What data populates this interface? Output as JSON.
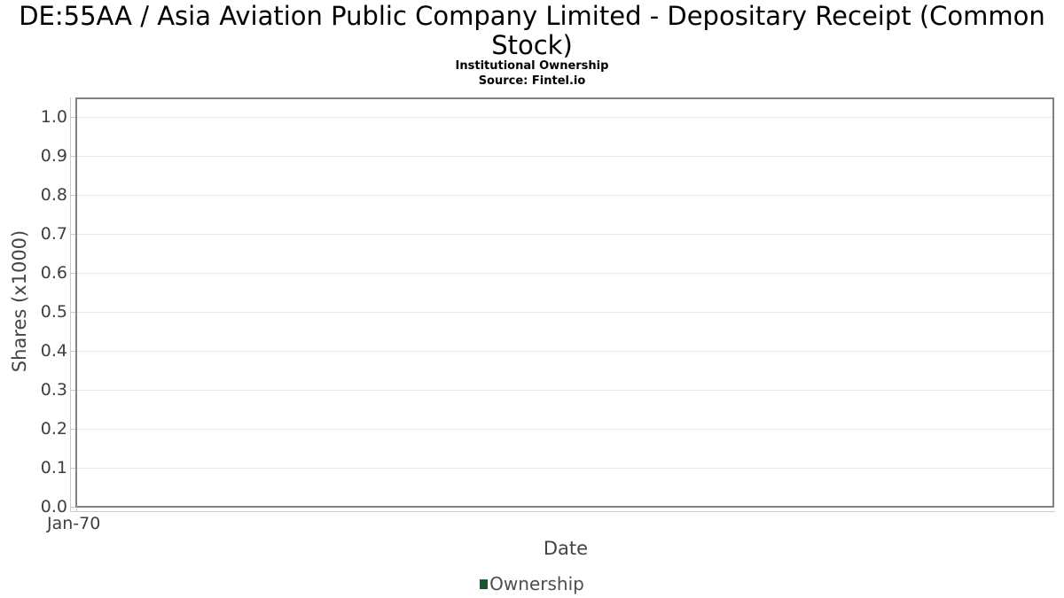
{
  "header": {
    "title": "DE:55AA / Asia Aviation Public Company Limited - Depositary Receipt (Common Stock)",
    "subtitle": "Institutional Ownership",
    "source": "Source: Fintel.io"
  },
  "legend": {
    "items": [
      {
        "label": "Ownership",
        "color": "#1e5430"
      }
    ]
  },
  "chart_data": {
    "type": "line",
    "title": "DE:55AA / Asia Aviation Public Company Limited - Depositary Receipt (Common Stock)",
    "subtitle": "Institutional Ownership",
    "source": "Source: Fintel.io",
    "xlabel": "Date",
    "ylabel": "Shares (x1000)",
    "x_tick_labels": [
      "Jan-70"
    ],
    "y_tick_labels": [
      "1.0",
      "0.9",
      "0.8",
      "0.7",
      "0.6",
      "0.5",
      "0.4",
      "0.3",
      "0.2",
      "0.1",
      "0.0"
    ],
    "ylim": [
      0.0,
      1.05
    ],
    "grid": true,
    "legend_position": "bottom-center",
    "series": [
      {
        "name": "Ownership",
        "color": "#1e5430",
        "x": [],
        "y": []
      }
    ],
    "colors": {
      "series_green": "#1e5430",
      "plot_border": "#828282",
      "gridline": "#e7e7e7",
      "axis_line": "#cccccc",
      "tick_text": "#3f3f3f",
      "axis_title_text": "#434343",
      "legend_text": "#4d4d4d",
      "title_text": "#000000"
    }
  }
}
